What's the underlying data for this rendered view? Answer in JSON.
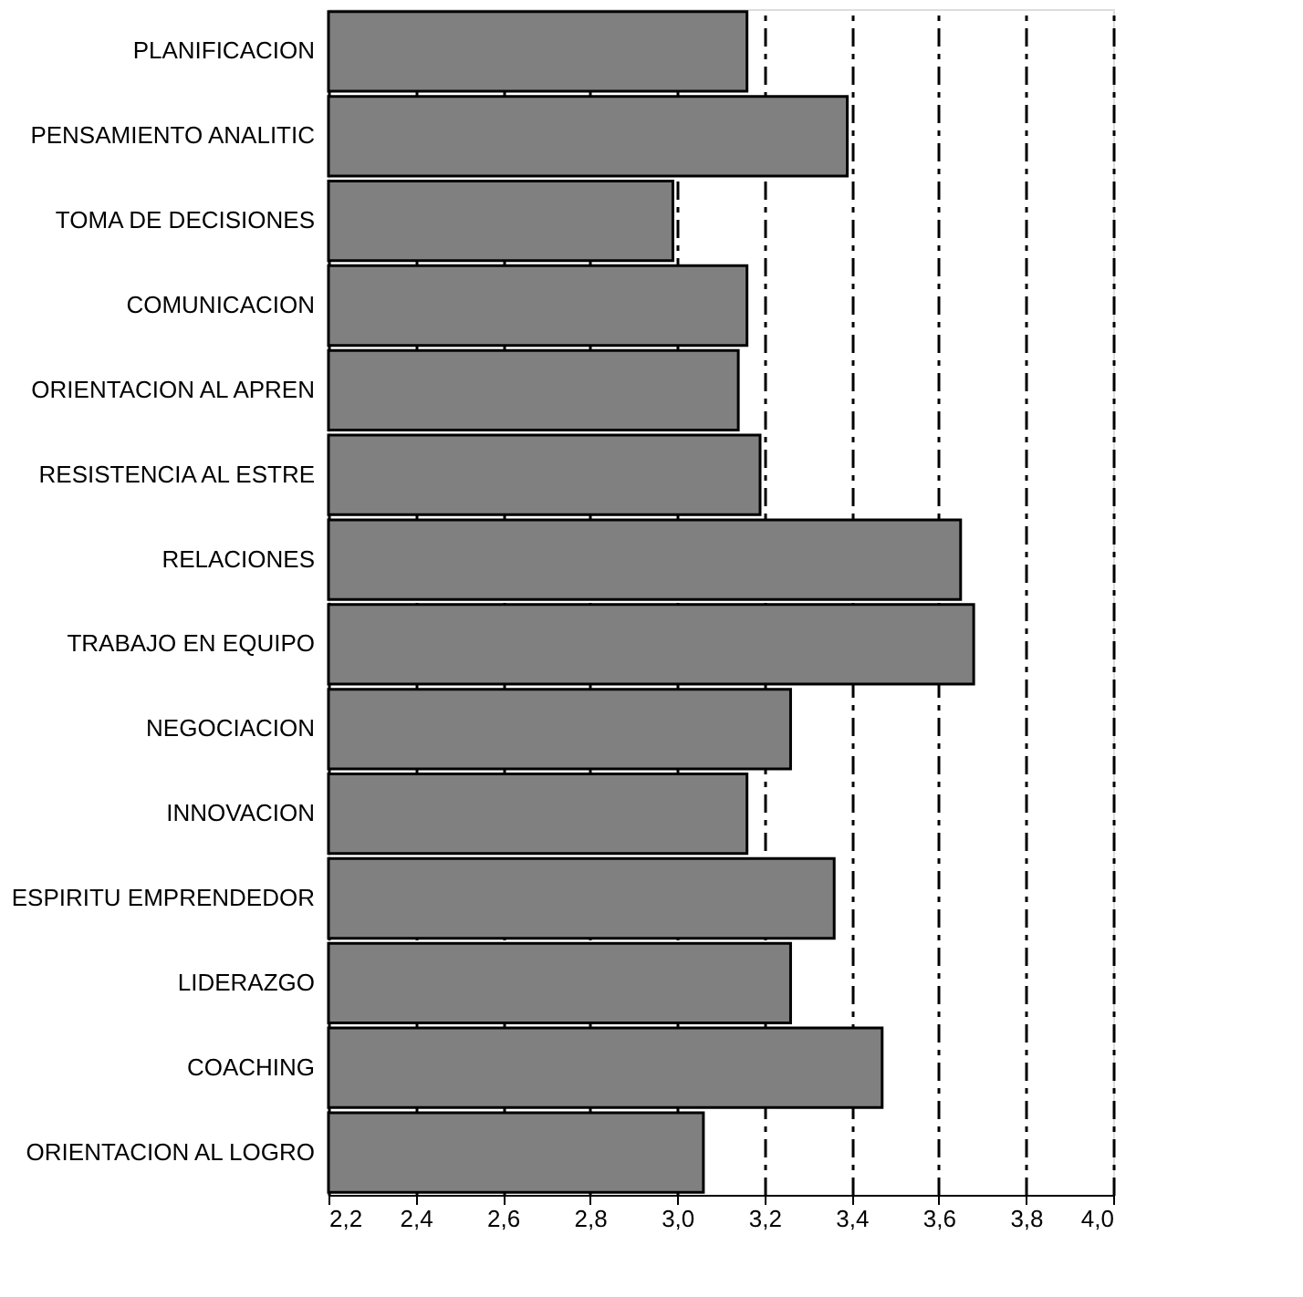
{
  "chart_data": {
    "type": "bar",
    "orientation": "horizontal",
    "categories": [
      "PLANIFICACION",
      "PENSAMIENTO ANALITIC",
      "TOMA DE DECISIONES",
      "COMUNICACION",
      "ORIENTACION AL APREN",
      "RESISTENCIA AL ESTRE",
      "RELACIONES",
      "TRABAJO EN EQUIPO",
      "NEGOCIACION",
      "INNOVACION",
      "ESPIRITU EMPRENDEDOR",
      "LIDERAZGO",
      "COACHING",
      "ORIENTACION AL LOGRO"
    ],
    "values": [
      3.16,
      3.39,
      2.99,
      3.16,
      3.14,
      3.19,
      3.65,
      3.68,
      3.26,
      3.16,
      3.36,
      3.26,
      3.47,
      3.06
    ],
    "color": "#808080",
    "xlim": [
      2.2,
      4.0
    ],
    "xticks": [
      {
        "value": 2.2,
        "label": "2,2"
      },
      {
        "value": 2.4,
        "label": "2,4"
      },
      {
        "value": 2.6,
        "label": "2,6"
      },
      {
        "value": 2.8,
        "label": "2,8"
      },
      {
        "value": 3.0,
        "label": "3,0"
      },
      {
        "value": 3.2,
        "label": "3,2"
      },
      {
        "value": 3.4,
        "label": "3,4"
      },
      {
        "value": 3.6,
        "label": "3,6"
      },
      {
        "value": 3.8,
        "label": "3,8"
      },
      {
        "value": 4.0,
        "label": "4,0"
      }
    ],
    "grid": "x"
  }
}
